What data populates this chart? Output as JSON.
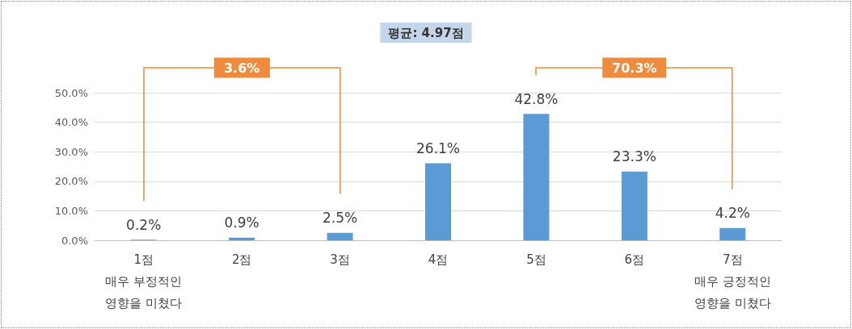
{
  "chart_data": {
    "type": "bar",
    "title": "평균: 4.97점",
    "categories": [
      "1점\n매우 부정적인\n영향을 미쳤다",
      "2점",
      "3점",
      "4점",
      "5점",
      "6점",
      "7점\n매우 긍정적인\n영향을 미쳤다"
    ],
    "values": [
      0.2,
      0.9,
      2.5,
      26.1,
      42.8,
      23.3,
      4.2
    ],
    "value_labels": [
      "0.2%",
      "0.9%",
      "2.5%",
      "26.1%",
      "42.8%",
      "23.3%",
      "4.2%"
    ],
    "color": "#5b9bd5",
    "ylim": [
      0,
      50
    ],
    "yticks": [
      {
        "value": 0,
        "label": "0.0%"
      },
      {
        "value": 10,
        "label": "10.0%"
      },
      {
        "value": 20,
        "label": "20.0%"
      },
      {
        "value": 30,
        "label": "30.0%"
      },
      {
        "value": 40,
        "label": "40.0%"
      },
      {
        "value": 50,
        "label": "50.0%"
      }
    ],
    "grid": "y",
    "annotations": [
      "3.6%",
      "70.3%"
    ]
  }
}
